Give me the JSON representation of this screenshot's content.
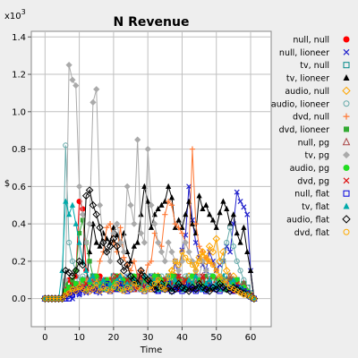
{
  "chart_data": {
    "type": "line",
    "title": "N Revenue",
    "xlabel": "Time",
    "ylabel": "$",
    "y_multiplier": "x10^3",
    "y_multiplier_base": "x10",
    "y_multiplier_exp": "3",
    "xlim": [
      -4,
      66
    ],
    "ylim": [
      -0.15,
      1.43
    ],
    "x_ticks": [
      "0",
      "10",
      "20",
      "30",
      "40",
      "50",
      "60"
    ],
    "y_ticks": [
      "0.0",
      "0.2",
      "0.4",
      "0.6",
      "0.8",
      "1.0",
      "1.2",
      "1.4"
    ],
    "grid": true,
    "legend_position": "right",
    "x": [
      0,
      1,
      2,
      3,
      4,
      5,
      6,
      7,
      8,
      9,
      10,
      11,
      12,
      13,
      14,
      15,
      16,
      17,
      18,
      19,
      20,
      21,
      22,
      23,
      24,
      25,
      26,
      27,
      28,
      29,
      30,
      31,
      32,
      33,
      34,
      35,
      36,
      37,
      38,
      39,
      40,
      41,
      42,
      43,
      44,
      45,
      46,
      47,
      48,
      49,
      50,
      51,
      52,
      53,
      54,
      55,
      56,
      57,
      58,
      59,
      60,
      61
    ],
    "series": [
      {
        "name": "null, null",
        "color": "#ff0000",
        "marker": "circle-filled",
        "values": [
          0,
          0,
          0,
          0,
          0,
          0,
          0.05,
          0.1,
          0.08,
          0.12,
          0.52,
          0.48,
          0.15,
          0.08,
          0.1,
          0.06,
          0.12,
          0.05,
          0.08,
          0.1,
          0.05,
          0.12,
          0.06,
          0.08,
          0.05,
          0.1,
          0.08,
          0.12,
          0.05,
          0.08,
          0.1,
          0.06,
          0.12,
          0.08,
          0.05,
          0.1,
          0.08,
          0.06,
          0.12,
          0.05,
          0.08,
          0.1,
          0.06,
          0.08,
          0.12,
          0.05,
          0.1,
          0.08,
          0.06,
          0.12,
          0.08,
          0.05,
          0.1,
          0.08,
          0.06,
          0.04,
          0.08,
          0.05,
          0.06,
          0.04,
          0.02,
          0
        ]
      },
      {
        "name": "null, lioneer",
        "color": "#2222cc",
        "marker": "x",
        "values": [
          0,
          0,
          0,
          0,
          0,
          0,
          0.02,
          0.03,
          0,
          0.05,
          0.02,
          0.04,
          0.03,
          0.06,
          0.04,
          0.05,
          0.03,
          0.08,
          0.06,
          0.04,
          0.1,
          0.06,
          0.05,
          0.04,
          0.12,
          0.08,
          0.05,
          0.06,
          0.1,
          0.08,
          0.05,
          0.12,
          0.06,
          0.04,
          0.08,
          0.1,
          0.06,
          0.05,
          0.2,
          0.12,
          0.26,
          0.34,
          0.6,
          0.42,
          0.3,
          0.22,
          0.18,
          0.15,
          0.25,
          0.2,
          0.15,
          0.18,
          0.2,
          0.28,
          0.25,
          0.4,
          0.57,
          0.52,
          0.49,
          0.45,
          0.15,
          0
        ]
      },
      {
        "name": "tv, null",
        "color": "#008888",
        "marker": "square-open",
        "values": [
          0,
          0,
          0,
          0,
          0,
          0,
          0.04,
          0.06,
          0.05,
          0.08,
          0.05,
          0.1,
          0.06,
          0.08,
          0.12,
          0.05,
          0.08,
          0.06,
          0.1,
          0.08,
          0.12,
          0.06,
          0.08,
          0.05,
          0.1,
          0.12,
          0.06,
          0.08,
          0.1,
          0.05,
          0.08,
          0.12,
          0.06,
          0.1,
          0.08,
          0.05,
          0.12,
          0.1,
          0.06,
          0.08,
          0.05,
          0.1,
          0.12,
          0.06,
          0.08,
          0.05,
          0.1,
          0.08,
          0.12,
          0.06,
          0.1,
          0.08,
          0.05,
          0.12,
          0.06,
          0.08,
          0.1,
          0.05,
          0.08,
          0.06,
          0.03,
          0
        ]
      },
      {
        "name": "tv, lioneer",
        "color": "#000000",
        "marker": "triangle-filled",
        "values": [
          0,
          0,
          0,
          0,
          0,
          0.01,
          0.02,
          0.03,
          0.05,
          0.04,
          0.06,
          0.05,
          0.08,
          0.25,
          0.4,
          0.3,
          0.28,
          0.35,
          0.32,
          0.3,
          0.38,
          0.34,
          0.3,
          0.35,
          0.25,
          0.2,
          0.28,
          0.3,
          0.45,
          0.6,
          0.52,
          0.38,
          0.45,
          0.48,
          0.5,
          0.52,
          0.6,
          0.54,
          0.38,
          0.42,
          0.38,
          0.45,
          0.52,
          0.4,
          0.35,
          0.55,
          0.48,
          0.5,
          0.45,
          0.42,
          0.38,
          0.46,
          0.52,
          0.48,
          0.4,
          0.45,
          0.35,
          0.3,
          0.38,
          0.25,
          0.15,
          0
        ]
      },
      {
        "name": "audio, null",
        "color": "#ffa500",
        "marker": "diamond-open",
        "values": [
          0,
          0,
          0,
          0,
          0,
          0,
          0.03,
          0.05,
          0.04,
          0.06,
          0.05,
          0.08,
          0.06,
          0.04,
          0.08,
          0.05,
          0.06,
          0.08,
          0.05,
          0.1,
          0.06,
          0.08,
          0.12,
          0.06,
          0.08,
          0.05,
          0.1,
          0.08,
          0.12,
          0.06,
          0.08,
          0.1,
          0.05,
          0.12,
          0.08,
          0.06,
          0.1,
          0.15,
          0.12,
          0.08,
          0.1,
          0.06,
          0.12,
          0.08,
          0.18,
          0.22,
          0.25,
          0.2,
          0.28,
          0.25,
          0.32,
          0.2,
          0.25,
          0.15,
          0.1,
          0.12,
          0.08,
          0.05,
          0.06,
          0.04,
          0.02,
          0
        ]
      },
      {
        "name": "audio, lioneer",
        "color": "#66aaaa",
        "marker": "circle-open",
        "values": [
          0,
          0,
          0,
          0,
          0,
          0,
          0.82,
          0.3,
          0.2,
          0.15,
          0.1,
          0.12,
          0.08,
          0.05,
          0.1,
          0.06,
          0.08,
          0.05,
          0.1,
          0.06,
          0.08,
          0.05,
          0.1,
          0.06,
          0.12,
          0.08,
          0.05,
          0.1,
          0.06,
          0.08,
          0.05,
          0.1,
          0.06,
          0.08,
          0.12,
          0.05,
          0.08,
          0.06,
          0.1,
          0.08,
          0.05,
          0.12,
          0.06,
          0.1,
          0.08,
          0.05,
          0.1,
          0.06,
          0.08,
          0.12,
          0.05,
          0.08,
          0.2,
          0.3,
          0.38,
          0.28,
          0.2,
          0.15,
          0.1,
          0.06,
          0.03,
          0
        ]
      },
      {
        "name": "dvd, null",
        "color": "#ff7733",
        "marker": "plus",
        "values": [
          0,
          0,
          0,
          0,
          0,
          0,
          0.02,
          0.04,
          0.03,
          0.05,
          0.08,
          0.06,
          0.1,
          0.08,
          0.12,
          0.1,
          0.2,
          0.25,
          0.38,
          0.4,
          0.3,
          0.25,
          0.38,
          0.22,
          0.18,
          0.15,
          0.2,
          0.12,
          0.15,
          0.1,
          0.18,
          0.2,
          0.35,
          0.3,
          0.28,
          0.45,
          0.52,
          0.5,
          0.4,
          0.38,
          0.35,
          0.3,
          0.25,
          0.8,
          0.4,
          0.28,
          0.25,
          0.22,
          0.2,
          0.18,
          0.15,
          0.12,
          0.1,
          0.08,
          0.06,
          0.05,
          0.08,
          0.05,
          0.04,
          0.03,
          0.02,
          0
        ]
      },
      {
        "name": "dvd, lioneer",
        "color": "#33aa33",
        "marker": "square-filled",
        "values": [
          0,
          0,
          0,
          0,
          0,
          0,
          0.08,
          0.02,
          0.1,
          0.15,
          0.35,
          0.42,
          0.3,
          0.2,
          0.12,
          0.08,
          0.06,
          0.05,
          0.08,
          0.06,
          0.1,
          0.05,
          0.08,
          0.06,
          0.1,
          0.08,
          0.12,
          0.06,
          0.08,
          0.05,
          0.1,
          0.06,
          0.08,
          0.12,
          0.05,
          0.1,
          0.08,
          0.06,
          0.12,
          0.08,
          0.05,
          0.1,
          0.06,
          0.08,
          0.05,
          0.1,
          0.06,
          0.12,
          0.08,
          0.05,
          0.1,
          0.06,
          0.08,
          0.05,
          0.1,
          0.08,
          0.06,
          0.05,
          0.08,
          0.04,
          0.02,
          0
        ]
      },
      {
        "name": "null, pg",
        "color": "#aa4444",
        "marker": "triangle-open",
        "values": [
          0,
          0,
          0,
          0,
          0,
          0,
          0.03,
          0.05,
          0.04,
          0.06,
          0.05,
          0.08,
          0.06,
          0.05,
          0.08,
          0.06,
          0.1,
          0.05,
          0.08,
          0.06,
          0.12,
          0.08,
          0.05,
          0.1,
          0.06,
          0.08,
          0.05,
          0.12,
          0.06,
          0.1,
          0.08,
          0.05,
          0.12,
          0.06,
          0.08,
          0.1,
          0.05,
          0.08,
          0.06,
          0.12,
          0.1,
          0.08,
          0.05,
          0.06,
          0.1,
          0.08,
          0.12,
          0.05,
          0.08,
          0.06,
          0.1,
          0.05,
          0.08,
          0.06,
          0.12,
          0.08,
          0.05,
          0.06,
          0.08,
          0.04,
          0.02,
          0
        ]
      },
      {
        "name": "tv, pg",
        "color": "#aaaaaa",
        "marker": "diamond-filled",
        "values": [
          0,
          0,
          0,
          0,
          0,
          0,
          0.1,
          1.25,
          1.17,
          1.14,
          0.6,
          0.45,
          0.3,
          0.4,
          1.05,
          1.12,
          0.5,
          0.3,
          0.25,
          0.2,
          0.35,
          0.4,
          0.3,
          0.25,
          0.6,
          0.5,
          0.4,
          0.85,
          0.35,
          0.3,
          0.8,
          0.5,
          0.4,
          0.3,
          0.25,
          0.2,
          0.3,
          0.25,
          0.2,
          0.15,
          0.2,
          0.3,
          0.25,
          0.2,
          0.15,
          0.12,
          0.2,
          0.15,
          0.1,
          0.12,
          0.08,
          0.1,
          0.06,
          0.08,
          0.05,
          0.06,
          0.04,
          0.05,
          0.03,
          0.02,
          0.01,
          0
        ]
      },
      {
        "name": "audio, pg",
        "color": "#22dd22",
        "marker": "circle-filled",
        "values": [
          0,
          0,
          0,
          0,
          0,
          0,
          0.04,
          0.06,
          0.05,
          0.08,
          0.06,
          0.1,
          0.05,
          0.08,
          0.06,
          0.12,
          0.08,
          0.05,
          0.1,
          0.06,
          0.08,
          0.12,
          0.05,
          0.1,
          0.08,
          0.06,
          0.12,
          0.08,
          0.05,
          0.1,
          0.06,
          0.08,
          0.12,
          0.05,
          0.1,
          0.08,
          0.06,
          0.12,
          0.08,
          0.1,
          0.05,
          0.06,
          0.08,
          0.12,
          0.05,
          0.1,
          0.06,
          0.08,
          0.05,
          0.12,
          0.06,
          0.1,
          0.08,
          0.05,
          0.06,
          0.08,
          0.1,
          0.05,
          0.06,
          0.04,
          0.02,
          0
        ]
      },
      {
        "name": "dvd, pg",
        "color": "#dd1111",
        "marker": "x",
        "values": [
          0,
          0,
          0,
          0,
          0,
          0,
          0.02,
          0.03,
          0.05,
          0.04,
          0.06,
          0.05,
          0.08,
          0.06,
          0.05,
          0.08,
          0.06,
          0.1,
          0.05,
          0.08,
          0.06,
          0.12,
          0.08,
          0.05,
          0.1,
          0.06,
          0.08,
          0.05,
          0.12,
          0.06,
          0.1,
          0.08,
          0.05,
          0.06,
          0.08,
          0.1,
          0.05,
          0.08,
          0.06,
          0.12,
          0.05,
          0.1,
          0.08,
          0.06,
          0.05,
          0.08,
          0.12,
          0.06,
          0.1,
          0.05,
          0.08,
          0.06,
          0.1,
          0.08,
          0.05,
          0.06,
          0.08,
          0.05,
          0.04,
          0.03,
          0.02,
          0
        ]
      },
      {
        "name": "null, flat",
        "color": "#0000dd",
        "marker": "square-open",
        "values": [
          0,
          0,
          0,
          0,
          0,
          0,
          0,
          0,
          0.02,
          0.04,
          0.03,
          0.05,
          0.04,
          0.06,
          0.05,
          0.04,
          0.06,
          0.05,
          0.08,
          0.04,
          0.06,
          0.05,
          0.08,
          0.06,
          0.04,
          0.05,
          0.08,
          0.06,
          0.05,
          0.04,
          0.06,
          0.08,
          0.05,
          0.04,
          0.06,
          0.05,
          0.08,
          0.04,
          0.06,
          0.05,
          0.04,
          0.06,
          0.08,
          0.05,
          0.04,
          0.06,
          0.05,
          0.04,
          0.08,
          0.06,
          0.05,
          0.04,
          0.06,
          0.08,
          0.05,
          0.04,
          0.06,
          0.05,
          0.04,
          0.03,
          0.01,
          0
        ]
      },
      {
        "name": "tv, flat",
        "color": "#00aaaa",
        "marker": "triangle-filled",
        "values": [
          0,
          0,
          0,
          0,
          0,
          0.15,
          0.52,
          0.45,
          0.5,
          0.4,
          0.3,
          0.2,
          0.15,
          0.1,
          0.12,
          0.08,
          0.06,
          0.1,
          0.05,
          0.08,
          0.06,
          0.1,
          0.12,
          0.05,
          0.08,
          0.06,
          0.1,
          0.08,
          0.05,
          0.12,
          0.06,
          0.08,
          0.1,
          0.05,
          0.08,
          0.06,
          0.12,
          0.05,
          0.1,
          0.08,
          0.06,
          0.05,
          0.1,
          0.08,
          0.12,
          0.06,
          0.05,
          0.08,
          0.1,
          0.06,
          0.08,
          0.05,
          0.12,
          0.06,
          0.08,
          0.1,
          0.05,
          0.06,
          0.04,
          0.03,
          0.01,
          0
        ]
      },
      {
        "name": "audio, flat",
        "color": "#000000",
        "marker": "diamond-open",
        "values": [
          0,
          0,
          0,
          0,
          0,
          0,
          0.15,
          0.14,
          0.12,
          0.15,
          0.2,
          0.18,
          0.55,
          0.58,
          0.5,
          0.45,
          0.38,
          0.3,
          0.25,
          0.28,
          0.32,
          0.28,
          0.2,
          0.15,
          0.18,
          0.12,
          0.1,
          0.08,
          0.15,
          0.12,
          0.1,
          0.08,
          0.05,
          0.06,
          0.08,
          0.05,
          0.06,
          0.04,
          0.05,
          0.08,
          0.06,
          0.05,
          0.04,
          0.06,
          0.05,
          0.08,
          0.06,
          0.05,
          0.04,
          0.06,
          0.05,
          0.08,
          0.06,
          0.05,
          0.04,
          0.06,
          0.05,
          0.04,
          0.03,
          0.02,
          0.01,
          0
        ]
      },
      {
        "name": "dvd, flat",
        "color": "#ffaa00",
        "marker": "circle-open",
        "values": [
          0,
          0,
          0,
          0,
          0,
          0,
          0.02,
          0.03,
          0.05,
          0.04,
          0.06,
          0.05,
          0.04,
          0.06,
          0.05,
          0.08,
          0.04,
          0.06,
          0.05,
          0.04,
          0.06,
          0.08,
          0.05,
          0.04,
          0.06,
          0.05,
          0.08,
          0.06,
          0.05,
          0.04,
          0.06,
          0.05,
          0.08,
          0.1,
          0.06,
          0.05,
          0.12,
          0.15,
          0.2,
          0.18,
          0.25,
          0.22,
          0.2,
          0.18,
          0.15,
          0.2,
          0.25,
          0.22,
          0.2,
          0.18,
          0.15,
          0.12,
          0.1,
          0.08,
          0.06,
          0.05,
          0.04,
          0.03,
          0.02,
          0.02,
          0.01,
          0
        ]
      }
    ]
  }
}
